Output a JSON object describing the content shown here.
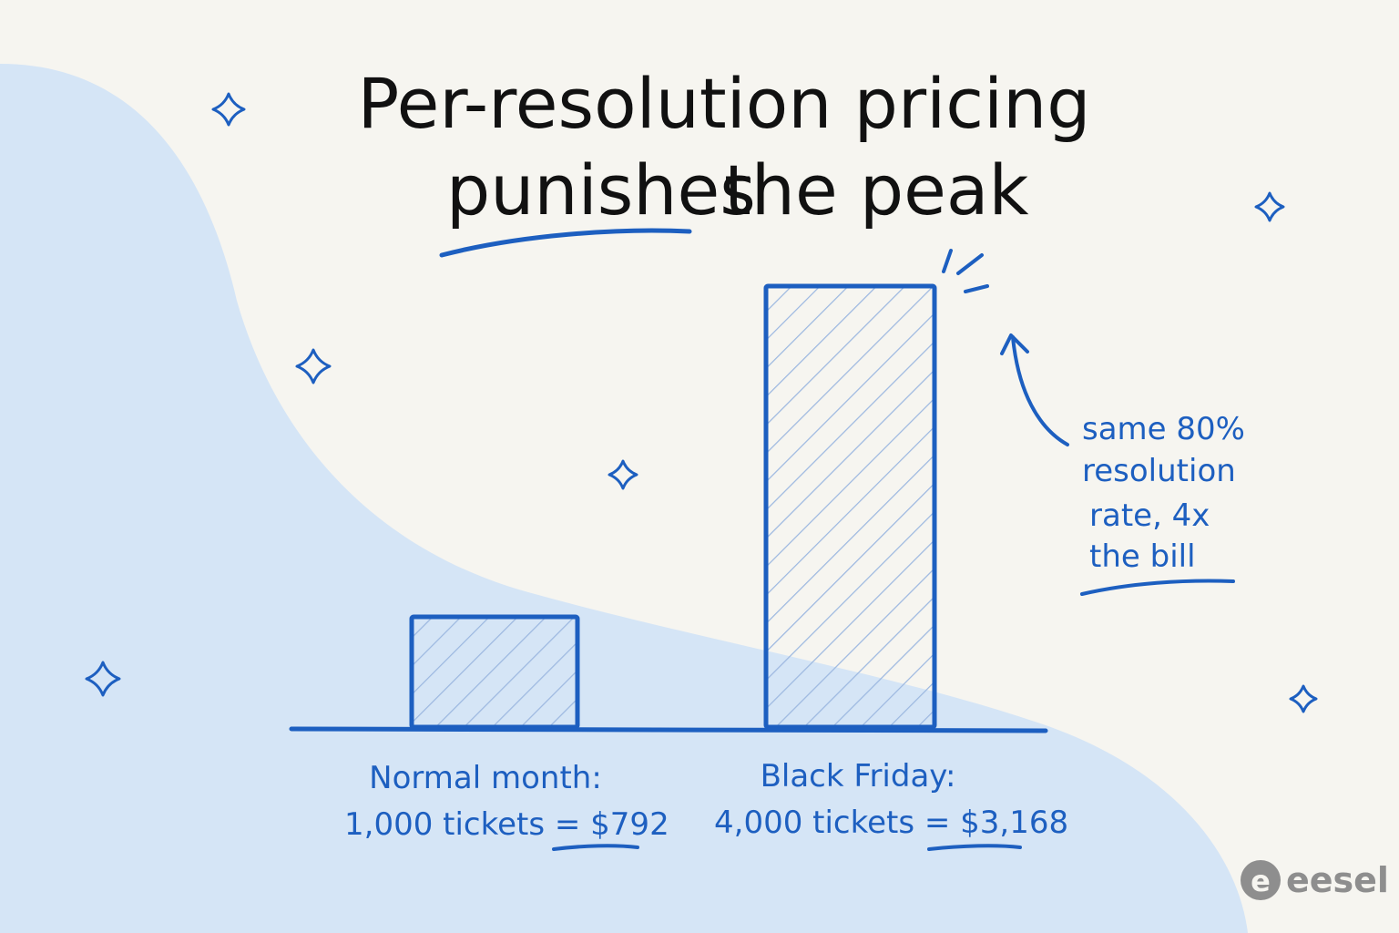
{
  "title": {
    "line1": "Per-resolution pricing",
    "line2_underlined": "punishes",
    "line2_rest": "the peak"
  },
  "colors": {
    "accent": "#1d5fc0",
    "blob": "#d5e5f6",
    "background": "#f6f5f0",
    "title": "#111111",
    "logo": "#8e8e8e"
  },
  "chart_data": {
    "type": "bar",
    "categories": [
      "Normal month",
      "Black Friday"
    ],
    "values": [
      1000,
      4000
    ],
    "category_labels": [
      {
        "name": "Normal month:",
        "detail": "1,000 tickets = ",
        "price": "$792"
      },
      {
        "name": "Black Friday:",
        "detail": "4,000 tickets = ",
        "price": "$3,168"
      }
    ],
    "title": "Per-resolution pricing punishes the peak",
    "xlabel": "",
    "ylabel": "",
    "ylim": [
      0,
      4000
    ],
    "grid": false
  },
  "annotation": {
    "lines": [
      "same 80%",
      "resolution",
      "rate, 4x",
      "the bill"
    ]
  },
  "logo": {
    "text": "eesel",
    "mark": "e"
  }
}
